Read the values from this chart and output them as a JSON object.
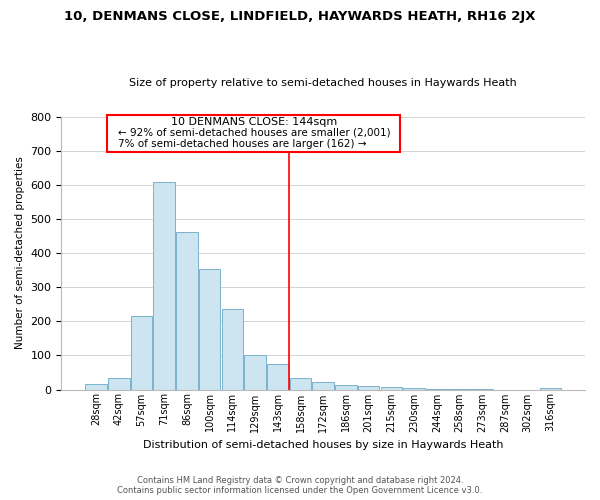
{
  "title": "10, DENMANS CLOSE, LINDFIELD, HAYWARDS HEATH, RH16 2JX",
  "subtitle": "Size of property relative to semi-detached houses in Haywards Heath",
  "xlabel": "Distribution of semi-detached houses by size in Haywards Heath",
  "ylabel": "Number of semi-detached properties",
  "categories": [
    "28sqm",
    "42sqm",
    "57sqm",
    "71sqm",
    "86sqm",
    "100sqm",
    "114sqm",
    "129sqm",
    "143sqm",
    "158sqm",
    "172sqm",
    "186sqm",
    "201sqm",
    "215sqm",
    "230sqm",
    "244sqm",
    "258sqm",
    "273sqm",
    "287sqm",
    "302sqm",
    "316sqm"
  ],
  "values": [
    15,
    35,
    215,
    608,
    462,
    352,
    237,
    102,
    75,
    35,
    23,
    12,
    10,
    7,
    3,
    2,
    1,
    1,
    0,
    0,
    5
  ],
  "bar_color": "#cce5f0",
  "bar_edge_color": "#7ab3cc",
  "vline_color": "red",
  "vline_x": 8.5,
  "annotation_title": "10 DENMANS CLOSE: 144sqm",
  "annotation_line1": "← 92% of semi-detached houses are smaller (2,001)",
  "annotation_line2": "7% of semi-detached houses are larger (162) →",
  "footer_line1": "Contains HM Land Registry data © Crown copyright and database right 2024.",
  "footer_line2": "Contains public sector information licensed under the Open Government Licence v3.0.",
  "ylim": [
    0,
    800
  ],
  "yticks": [
    0,
    100,
    200,
    300,
    400,
    500,
    600,
    700,
    800
  ],
  "background_color": "#ffffff",
  "grid_color": "#cccccc"
}
